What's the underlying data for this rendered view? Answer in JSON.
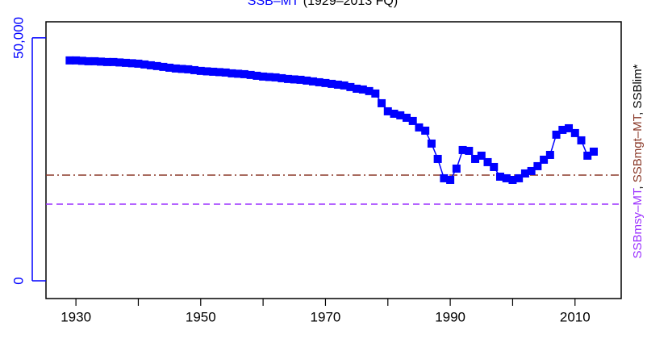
{
  "chart_data": {
    "type": "line",
    "title_parts": [
      {
        "text": "SSB–MT",
        "color": "#0000ff"
      },
      {
        "text": "(1929–2013 FQ)",
        "color": "#000000"
      }
    ],
    "right_label_parts": [
      {
        "text": "SSBmsy–MT",
        "color": "#9b30ff"
      },
      {
        "text": ", ",
        "color": "#000000"
      },
      {
        "text": "SSBmgt–MT",
        "color": "#8b3a2a"
      },
      {
        "text": ", ",
        "color": "#000000"
      },
      {
        "text": "SSBlim*",
        "color": "#000000"
      }
    ],
    "x": [
      1929,
      1930,
      1931,
      1932,
      1933,
      1934,
      1935,
      1936,
      1937,
      1938,
      1939,
      1940,
      1941,
      1942,
      1943,
      1944,
      1945,
      1946,
      1947,
      1948,
      1949,
      1950,
      1951,
      1952,
      1953,
      1954,
      1955,
      1956,
      1957,
      1958,
      1959,
      1960,
      1961,
      1962,
      1963,
      1964,
      1965,
      1966,
      1967,
      1968,
      1969,
      1970,
      1971,
      1972,
      1973,
      1974,
      1975,
      1976,
      1977,
      1978,
      1979,
      1980,
      1981,
      1982,
      1983,
      1984,
      1985,
      1986,
      1987,
      1988,
      1989,
      1990,
      1991,
      1992,
      1993,
      1994,
      1995,
      1996,
      1997,
      1998,
      1999,
      2000,
      2001,
      2002,
      2003,
      2004,
      2005,
      2006,
      2007,
      2008,
      2009,
      2010,
      2011,
      2012,
      2013
    ],
    "series": [
      {
        "name": "SSB–MT",
        "color": "#0000ff",
        "values": [
          45350,
          45350,
          45270,
          45180,
          45180,
          45100,
          45020,
          45020,
          44930,
          44850,
          44770,
          44680,
          44520,
          44350,
          44190,
          44020,
          43850,
          43690,
          43600,
          43520,
          43350,
          43190,
          43100,
          43020,
          42940,
          42860,
          42690,
          42610,
          42520,
          42360,
          42190,
          42030,
          41940,
          41860,
          41690,
          41530,
          41440,
          41360,
          41200,
          41030,
          40860,
          40700,
          40530,
          40360,
          40200,
          39870,
          39530,
          39370,
          39040,
          38540,
          36540,
          34880,
          34380,
          34050,
          33550,
          32890,
          31560,
          30900,
          28240,
          25080,
          21100,
          20760,
          23090,
          26910,
          26740,
          25080,
          25750,
          24420,
          23420,
          21430,
          21100,
          20760,
          21100,
          22090,
          22590,
          23590,
          24920,
          25910,
          30070,
          31060,
          31390,
          30400,
          28900,
          25750,
          26580
        ]
      }
    ],
    "ref_lines": [
      {
        "value": 15780,
        "color": "#9b30ff",
        "dash": "8 5"
      },
      {
        "value": 21760,
        "color": "#8b3a2a",
        "dash": "10 4 2 4"
      }
    ],
    "xlim": [
      1925.2,
      2017.4
    ],
    "ylim": [
      -3650,
      53300
    ],
    "xticks": [
      1930,
      1950,
      1970,
      1990,
      2010
    ],
    "xminor_ticks": [
      1940,
      1960,
      1980,
      2000
    ],
    "yticks": [
      0,
      {
        "value": 50000,
        "label": "50,000"
      }
    ],
    "ytick_color": "#0000ff"
  }
}
